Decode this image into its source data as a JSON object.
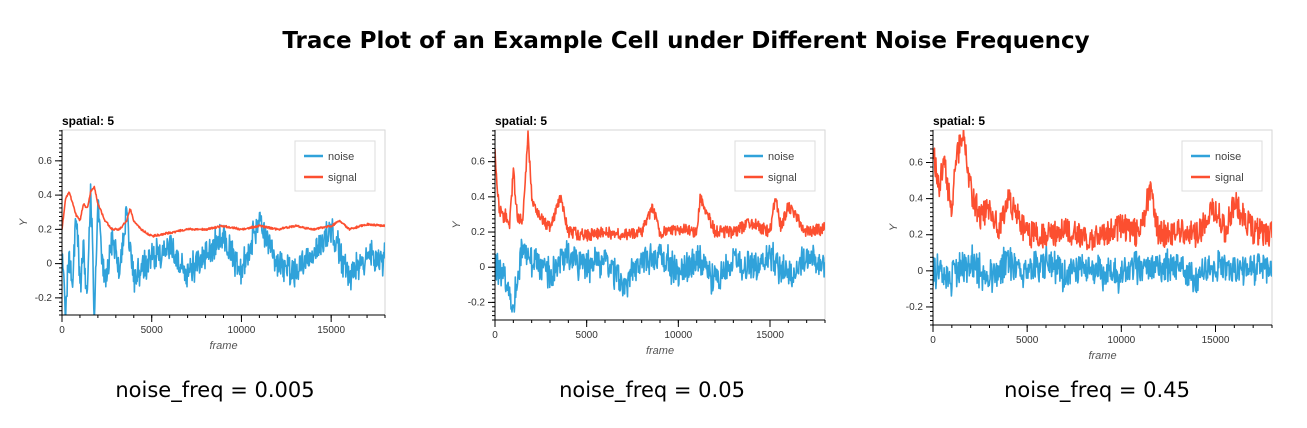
{
  "title": "Trace Plot of an Example Cell under Different Noise Frequency",
  "colors": {
    "noise": "#30a2da",
    "signal": "#fc4f30",
    "axis": "#000000",
    "frame": "#d6d6d6"
  },
  "chart_data": [
    {
      "type": "line",
      "title": "spatial: 5",
      "xlabel": "frame",
      "ylabel": "Y",
      "xlim": [
        0,
        18000
      ],
      "ylim": [
        -0.3,
        0.78
      ],
      "xticks": [
        0,
        5000,
        10000,
        15000
      ],
      "yticks": [
        -0.2,
        0,
        0.2,
        0.4,
        0.6
      ],
      "legend_placement": "top-right",
      "caption": "noise_freq = 0.005",
      "noise_freq": 0.005,
      "series": [
        {
          "name": "noise",
          "x": [
            0,
            200,
            400,
            600,
            800,
            1000,
            1200,
            1400,
            1600,
            1800,
            2000,
            2400,
            2800,
            3200,
            3600,
            4000,
            5000,
            6000,
            7000,
            8000,
            9000,
            10000,
            11000,
            12000,
            13000,
            14000,
            15000,
            16000,
            17000,
            18000
          ],
          "y": [
            0.02,
            -0.25,
            0.05,
            -0.1,
            0.3,
            -0.15,
            0.1,
            -0.2,
            0.45,
            -0.3,
            0.35,
            -0.12,
            0.15,
            -0.05,
            0.3,
            -0.08,
            0.04,
            0.1,
            -0.06,
            0.05,
            0.15,
            -0.05,
            0.26,
            0.0,
            -0.05,
            0.06,
            0.2,
            -0.08,
            0.05,
            0.02
          ]
        },
        {
          "name": "signal",
          "x": [
            0,
            200,
            400,
            600,
            800,
            1000,
            1200,
            1400,
            1600,
            1800,
            2000,
            2200,
            2400,
            2800,
            3200,
            3600,
            3800,
            4000,
            4400,
            5000,
            6000,
            7000,
            8000,
            9000,
            10000,
            11000,
            12000,
            13000,
            14000,
            15000,
            15500,
            16000,
            17000,
            18000
          ],
          "y": [
            0.2,
            0.38,
            0.42,
            0.35,
            0.28,
            0.25,
            0.35,
            0.32,
            0.42,
            0.45,
            0.35,
            0.3,
            0.25,
            0.2,
            0.2,
            0.25,
            0.32,
            0.25,
            0.2,
            0.16,
            0.18,
            0.2,
            0.2,
            0.22,
            0.2,
            0.22,
            0.2,
            0.22,
            0.2,
            0.22,
            0.25,
            0.2,
            0.23,
            0.22
          ]
        }
      ]
    },
    {
      "type": "line",
      "title": "spatial: 5",
      "xlabel": "frame",
      "ylabel": "Y",
      "xlim": [
        0,
        18000
      ],
      "ylim": [
        -0.3,
        0.78
      ],
      "xticks": [
        0,
        5000,
        10000,
        15000
      ],
      "yticks": [
        -0.2,
        0,
        0.2,
        0.4,
        0.6
      ],
      "legend_placement": "top-right",
      "caption": "noise_freq = 0.05",
      "noise_freq": 0.05,
      "series": [
        {
          "name": "noise",
          "x": [
            0,
            500,
            1000,
            1500,
            2000,
            3000,
            4000,
            5000,
            6000,
            7000,
            8000,
            9000,
            10000,
            11000,
            12000,
            13000,
            14000,
            15000,
            16000,
            17000,
            18000
          ],
          "y": [
            0.0,
            -0.05,
            -0.22,
            0.12,
            0.05,
            -0.05,
            0.08,
            0.0,
            0.05,
            -0.1,
            0.03,
            0.08,
            -0.05,
            0.05,
            -0.08,
            0.04,
            0.0,
            0.06,
            -0.06,
            0.05,
            0.0
          ]
        },
        {
          "name": "signal",
          "x": [
            0,
            200,
            400,
            600,
            800,
            1000,
            1200,
            1500,
            1800,
            2000,
            2400,
            3000,
            3600,
            4000,
            5000,
            6000,
            7000,
            8000,
            8600,
            9000,
            10000,
            11000,
            11200,
            12000,
            13000,
            14000,
            15000,
            15300,
            15600,
            16000,
            17000,
            18000
          ],
          "y": [
            0.65,
            0.35,
            0.28,
            0.3,
            0.25,
            0.55,
            0.3,
            0.25,
            0.75,
            0.4,
            0.3,
            0.22,
            0.4,
            0.2,
            0.18,
            0.2,
            0.18,
            0.2,
            0.35,
            0.2,
            0.22,
            0.2,
            0.4,
            0.2,
            0.2,
            0.25,
            0.2,
            0.4,
            0.22,
            0.35,
            0.2,
            0.22
          ]
        }
      ]
    },
    {
      "type": "line",
      "title": "spatial: 5",
      "xlabel": "frame",
      "ylabel": "Y",
      "xlim": [
        0,
        18000
      ],
      "ylim": [
        -0.3,
        0.78
      ],
      "xticks": [
        0,
        5000,
        10000,
        15000
      ],
      "yticks": [
        -0.2,
        0,
        0.2,
        0.4,
        0.6
      ],
      "legend_placement": "top-right",
      "caption": "noise_freq = 0.45",
      "noise_freq": 0.45,
      "series": [
        {
          "name": "noise",
          "x": [
            0,
            1000,
            2000,
            3000,
            4000,
            5000,
            6000,
            7000,
            8000,
            9000,
            10000,
            11000,
            12000,
            13000,
            14000,
            15000,
            16000,
            17000,
            18000
          ],
          "y": [
            0.0,
            -0.05,
            0.05,
            -0.03,
            0.04,
            0.0,
            0.05,
            -0.04,
            0.03,
            0.0,
            -0.03,
            0.04,
            0.0,
            0.03,
            -0.04,
            0.02,
            0.0,
            0.03,
            0.0
          ]
        },
        {
          "name": "signal",
          "x": [
            0,
            300,
            600,
            1000,
            1200,
            1600,
            2000,
            2500,
            3000,
            3500,
            4000,
            5000,
            6000,
            7000,
            8000,
            9000,
            10000,
            11000,
            11500,
            12000,
            13000,
            14000,
            15000,
            15500,
            16000,
            17000,
            18000
          ],
          "y": [
            0.7,
            0.45,
            0.6,
            0.3,
            0.6,
            0.78,
            0.45,
            0.3,
            0.35,
            0.25,
            0.4,
            0.2,
            0.2,
            0.22,
            0.18,
            0.2,
            0.25,
            0.2,
            0.45,
            0.2,
            0.22,
            0.2,
            0.35,
            0.22,
            0.38,
            0.22,
            0.2
          ]
        }
      ]
    }
  ]
}
